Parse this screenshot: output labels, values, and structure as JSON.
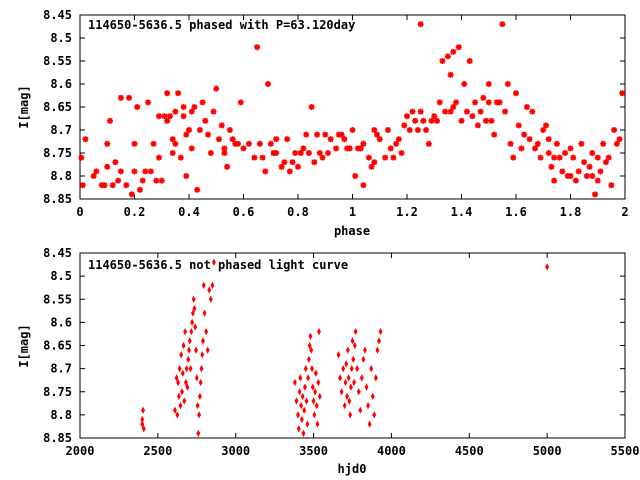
{
  "chart_data": [
    {
      "type": "scatter",
      "title": "114650-5636.5 phased with P=63.120day",
      "xlabel": "phase",
      "ylabel": "I[mag]",
      "xlim": [
        0,
        2
      ],
      "ylim": [
        8.85,
        8.45
      ],
      "y_inverted": true,
      "xticks": [
        0,
        0.2,
        0.4,
        0.6,
        0.8,
        1,
        1.2,
        1.4,
        1.6,
        1.8,
        2
      ],
      "xtick_labels": [
        "0",
        "0.2",
        "0.4",
        "0.6",
        "0.8",
        "1",
        "1.2",
        "1.4",
        "1.6",
        "1.8",
        "2"
      ],
      "yticks": [
        8.45,
        8.5,
        8.55,
        8.6,
        8.65,
        8.7,
        8.75,
        8.8,
        8.85
      ],
      "ytick_labels": [
        "8.45",
        "8.5",
        "8.55",
        "8.6",
        "8.65",
        "8.7",
        "8.75",
        "8.8",
        "8.85"
      ],
      "grid": false,
      "marker_color": "#ff0000",
      "marker": "cross",
      "points": [
        [
          0.005,
          8.76
        ],
        [
          0.01,
          8.82
        ],
        [
          0.02,
          8.72
        ],
        [
          0.05,
          8.8
        ],
        [
          0.06,
          8.79
        ],
        [
          0.08,
          8.82
        ],
        [
          0.09,
          8.82
        ],
        [
          0.1,
          8.78
        ],
        [
          0.1,
          8.73
        ],
        [
          0.11,
          8.68
        ],
        [
          0.12,
          8.82
        ],
        [
          0.13,
          8.77
        ],
        [
          0.14,
          8.81
        ],
        [
          0.15,
          8.79
        ],
        [
          0.15,
          8.63
        ],
        [
          0.17,
          8.82
        ],
        [
          0.18,
          8.63
        ],
        [
          0.19,
          8.84
        ],
        [
          0.2,
          8.79
        ],
        [
          0.2,
          8.73
        ],
        [
          0.21,
          8.65
        ],
        [
          0.22,
          8.83
        ],
        [
          0.23,
          8.81
        ],
        [
          0.24,
          8.79
        ],
        [
          0.25,
          8.64
        ],
        [
          0.26,
          8.79
        ],
        [
          0.27,
          8.73
        ],
        [
          0.28,
          8.81
        ],
        [
          0.29,
          8.76
        ],
        [
          0.29,
          8.67
        ],
        [
          0.3,
          8.81
        ],
        [
          0.31,
          8.67
        ],
        [
          0.32,
          8.68
        ],
        [
          0.32,
          8.62
        ],
        [
          0.33,
          8.67
        ],
        [
          0.34,
          8.75
        ],
        [
          0.34,
          8.72
        ],
        [
          0.35,
          8.73
        ],
        [
          0.35,
          8.66
        ],
        [
          0.36,
          8.62
        ],
        [
          0.37,
          8.76
        ],
        [
          0.38,
          8.65
        ],
        [
          0.38,
          8.67
        ],
        [
          0.39,
          8.8
        ],
        [
          0.39,
          8.71
        ],
        [
          0.4,
          8.7
        ],
        [
          0.41,
          8.74
        ],
        [
          0.41,
          8.66
        ],
        [
          0.42,
          8.65
        ],
        [
          0.43,
          8.83
        ],
        [
          0.44,
          8.7
        ],
        [
          0.45,
          8.64
        ],
        [
          0.46,
          8.68
        ],
        [
          0.47,
          8.71
        ],
        [
          0.48,
          8.75
        ],
        [
          0.49,
          8.66
        ],
        [
          0.5,
          8.61
        ],
        [
          0.51,
          8.72
        ],
        [
          0.52,
          8.69
        ],
        [
          0.53,
          8.75
        ],
        [
          0.53,
          8.74
        ],
        [
          0.54,
          8.78
        ],
        [
          0.55,
          8.7
        ],
        [
          0.56,
          8.72
        ],
        [
          0.57,
          8.73
        ],
        [
          0.58,
          8.73
        ],
        [
          0.59,
          8.64
        ],
        [
          0.6,
          8.74
        ],
        [
          0.62,
          8.73
        ],
        [
          0.64,
          8.76
        ],
        [
          0.65,
          8.52
        ],
        [
          0.66,
          8.73
        ],
        [
          0.67,
          8.76
        ],
        [
          0.68,
          8.79
        ],
        [
          0.69,
          8.6
        ],
        [
          0.7,
          8.73
        ],
        [
          0.71,
          8.75
        ],
        [
          0.72,
          8.75
        ],
        [
          0.72,
          8.72
        ],
        [
          0.74,
          8.78
        ],
        [
          0.75,
          8.77
        ],
        [
          0.76,
          8.72
        ],
        [
          0.77,
          8.79
        ],
        [
          0.78,
          8.77
        ],
        [
          0.79,
          8.75
        ],
        [
          0.8,
          8.78
        ],
        [
          0.81,
          8.75
        ],
        [
          0.82,
          8.74
        ],
        [
          0.83,
          8.71
        ],
        [
          0.84,
          8.75
        ],
        [
          0.85,
          8.65
        ],
        [
          0.86,
          8.77
        ],
        [
          0.87,
          8.71
        ],
        [
          0.88,
          8.75
        ],
        [
          0.89,
          8.76
        ],
        [
          0.9,
          8.71
        ],
        [
          0.91,
          8.75
        ],
        [
          0.92,
          8.72
        ],
        [
          0.94,
          8.74
        ],
        [
          0.95,
          8.71
        ],
        [
          0.96,
          8.71
        ],
        [
          0.97,
          8.72
        ],
        [
          0.98,
          8.74
        ],
        [
          0.99,
          8.74
        ],
        [
          1.0,
          8.7
        ],
        [
          1.01,
          8.8
        ],
        [
          1.02,
          8.74
        ],
        [
          1.03,
          8.74
        ],
        [
          1.04,
          8.73
        ],
        [
          1.04,
          8.82
        ],
        [
          1.06,
          8.76
        ],
        [
          1.07,
          8.78
        ],
        [
          1.08,
          8.77
        ],
        [
          1.08,
          8.7
        ],
        [
          1.09,
          8.71
        ],
        [
          1.1,
          8.72
        ],
        [
          1.12,
          8.76
        ],
        [
          1.13,
          8.7
        ],
        [
          1.14,
          8.74
        ],
        [
          1.15,
          8.76
        ],
        [
          1.16,
          8.73
        ],
        [
          1.17,
          8.72
        ],
        [
          1.18,
          8.75
        ],
        [
          1.19,
          8.69
        ],
        [
          1.2,
          8.67
        ],
        [
          1.21,
          8.7
        ],
        [
          1.22,
          8.66
        ],
        [
          1.23,
          8.68
        ],
        [
          1.24,
          8.7
        ],
        [
          1.25,
          8.66
        ],
        [
          1.25,
          8.47
        ],
        [
          1.26,
          8.68
        ],
        [
          1.27,
          8.7
        ],
        [
          1.28,
          8.73
        ],
        [
          1.29,
          8.68
        ],
        [
          1.3,
          8.67
        ],
        [
          1.31,
          8.68
        ],
        [
          1.32,
          8.64
        ],
        [
          1.33,
          8.55
        ],
        [
          1.34,
          8.66
        ],
        [
          1.35,
          8.54
        ],
        [
          1.36,
          8.66
        ],
        [
          1.36,
          8.58
        ],
        [
          1.37,
          8.65
        ],
        [
          1.37,
          8.53
        ],
        [
          1.38,
          8.64
        ],
        [
          1.39,
          8.52
        ],
        [
          1.4,
          8.68
        ],
        [
          1.41,
          8.6
        ],
        [
          1.42,
          8.66
        ],
        [
          1.43,
          8.55
        ],
        [
          1.44,
          8.67
        ],
        [
          1.45,
          8.64
        ],
        [
          1.46,
          8.69
        ],
        [
          1.47,
          8.66
        ],
        [
          1.48,
          8.63
        ],
        [
          1.49,
          8.68
        ],
        [
          1.5,
          8.64
        ],
        [
          1.5,
          8.6
        ],
        [
          1.51,
          8.68
        ],
        [
          1.52,
          8.71
        ],
        [
          1.53,
          8.64
        ],
        [
          1.54,
          8.64
        ],
        [
          1.55,
          8.47
        ],
        [
          1.56,
          8.66
        ],
        [
          1.57,
          8.6
        ],
        [
          1.58,
          8.73
        ],
        [
          1.59,
          8.76
        ],
        [
          1.6,
          8.62
        ],
        [
          1.61,
          8.69
        ],
        [
          1.62,
          8.74
        ],
        [
          1.63,
          8.71
        ],
        [
          1.64,
          8.65
        ],
        [
          1.65,
          8.72
        ],
        [
          1.66,
          8.66
        ],
        [
          1.67,
          8.74
        ],
        [
          1.68,
          8.73
        ],
        [
          1.69,
          8.76
        ],
        [
          1.7,
          8.7
        ],
        [
          1.71,
          8.69
        ],
        [
          1.72,
          8.72
        ],
        [
          1.72,
          8.75
        ],
        [
          1.73,
          8.78
        ],
        [
          1.74,
          8.81
        ],
        [
          1.74,
          8.76
        ],
        [
          1.75,
          8.73
        ],
        [
          1.76,
          8.76
        ],
        [
          1.77,
          8.79
        ],
        [
          1.78,
          8.75
        ],
        [
          1.79,
          8.8
        ],
        [
          1.8,
          8.74
        ],
        [
          1.8,
          8.8
        ],
        [
          1.81,
          8.76
        ],
        [
          1.82,
          8.81
        ],
        [
          1.83,
          8.79
        ],
        [
          1.84,
          8.73
        ],
        [
          1.85,
          8.77
        ],
        [
          1.86,
          8.8
        ],
        [
          1.87,
          8.78
        ],
        [
          1.88,
          8.75
        ],
        [
          1.88,
          8.8
        ],
        [
          1.89,
          8.84
        ],
        [
          1.9,
          8.81
        ],
        [
          1.9,
          8.76
        ],
        [
          1.91,
          8.79
        ],
        [
          1.92,
          8.73
        ],
        [
          1.93,
          8.77
        ],
        [
          1.94,
          8.76
        ],
        [
          1.95,
          8.82
        ],
        [
          1.96,
          8.7
        ],
        [
          1.97,
          8.73
        ],
        [
          1.98,
          8.72
        ],
        [
          1.99,
          8.62
        ]
      ]
    },
    {
      "type": "scatter",
      "title": "114650-5636.5 not phased light curve",
      "xlabel": "hjd0",
      "ylabel": "I[mag]",
      "xlim": [
        2000,
        5500
      ],
      "ylim": [
        8.85,
        8.45
      ],
      "y_inverted": true,
      "xticks": [
        2000,
        2500,
        3000,
        3500,
        4000,
        4500,
        5000,
        5500
      ],
      "xtick_labels": [
        "2000",
        "2500",
        "3000",
        "3500",
        "4000",
        "4500",
        "5000",
        "5500"
      ],
      "yticks": [
        8.45,
        8.5,
        8.55,
        8.6,
        8.65,
        8.7,
        8.75,
        8.8,
        8.85
      ],
      "ytick_labels": [
        "8.45",
        "8.5",
        "8.55",
        "8.6",
        "8.65",
        "8.7",
        "8.75",
        "8.8",
        "8.85"
      ],
      "grid": false,
      "marker_color": "#ff0000",
      "marker": "diamond",
      "points": [
        [
          2400,
          8.82
        ],
        [
          2400,
          8.81
        ],
        [
          2405,
          8.79
        ],
        [
          2410,
          8.83
        ],
        [
          2610,
          8.79
        ],
        [
          2620,
          8.72
        ],
        [
          2625,
          8.8
        ],
        [
          2630,
          8.73
        ],
        [
          2635,
          8.76
        ],
        [
          2640,
          8.7
        ],
        [
          2645,
          8.78
        ],
        [
          2650,
          8.67
        ],
        [
          2655,
          8.75
        ],
        [
          2660,
          8.71
        ],
        [
          2665,
          8.65
        ],
        [
          2670,
          8.77
        ],
        [
          2675,
          8.62
        ],
        [
          2680,
          8.73
        ],
        [
          2685,
          8.7
        ],
        [
          2690,
          8.74
        ],
        [
          2695,
          8.68
        ],
        [
          2700,
          8.66
        ],
        [
          2705,
          8.64
        ],
        [
          2710,
          8.7
        ],
        [
          2715,
          8.62
        ],
        [
          2720,
          8.6
        ],
        [
          2725,
          8.58
        ],
        [
          2730,
          8.55
        ],
        [
          2735,
          8.57
        ],
        [
          2740,
          8.61
        ],
        [
          2745,
          8.66
        ],
        [
          2750,
          8.72
        ],
        [
          2755,
          8.78
        ],
        [
          2760,
          8.84
        ],
        [
          2765,
          8.8
        ],
        [
          2770,
          8.76
        ],
        [
          2775,
          8.73
        ],
        [
          2780,
          8.7
        ],
        [
          2785,
          8.67
        ],
        [
          2790,
          8.64
        ],
        [
          2795,
          8.52
        ],
        [
          2800,
          8.58
        ],
        [
          2810,
          8.62
        ],
        [
          2820,
          8.66
        ],
        [
          2830,
          8.53
        ],
        [
          2840,
          8.55
        ],
        [
          2850,
          8.52
        ],
        [
          2860,
          8.47
        ],
        [
          3380,
          8.73
        ],
        [
          3390,
          8.77
        ],
        [
          3400,
          8.8
        ],
        [
          3405,
          8.83
        ],
        [
          3410,
          8.75
        ],
        [
          3415,
          8.72
        ],
        [
          3420,
          8.78
        ],
        [
          3425,
          8.81
        ],
        [
          3430,
          8.76
        ],
        [
          3435,
          8.84
        ],
        [
          3440,
          8.79
        ],
        [
          3445,
          8.74
        ],
        [
          3450,
          8.7
        ],
        [
          3455,
          8.77
        ],
        [
          3460,
          8.82
        ],
        [
          3465,
          8.72
        ],
        [
          3470,
          8.68
        ],
        [
          3475,
          8.65
        ],
        [
          3480,
          8.63
        ],
        [
          3485,
          8.66
        ],
        [
          3490,
          8.7
        ],
        [
          3495,
          8.74
        ],
        [
          3500,
          8.77
        ],
        [
          3505,
          8.8
        ],
        [
          3510,
          8.75
        ],
        [
          3515,
          8.71
        ],
        [
          3520,
          8.78
        ],
        [
          3525,
          8.82
        ],
        [
          3530,
          8.73
        ],
        [
          3535,
          8.62
        ],
        [
          3540,
          8.76
        ],
        [
          3660,
          8.67
        ],
        [
          3670,
          8.72
        ],
        [
          3680,
          8.75
        ],
        [
          3690,
          8.7
        ],
        [
          3700,
          8.78
        ],
        [
          3705,
          8.73
        ],
        [
          3710,
          8.69
        ],
        [
          3715,
          8.76
        ],
        [
          3720,
          8.66
        ],
        [
          3725,
          8.72
        ],
        [
          3730,
          8.77
        ],
        [
          3735,
          8.8
        ],
        [
          3740,
          8.74
        ],
        [
          3745,
          8.7
        ],
        [
          3750,
          8.64
        ],
        [
          3755,
          8.68
        ],
        [
          3760,
          8.73
        ],
        [
          3765,
          8.65
        ],
        [
          3770,
          8.62
        ],
        [
          3780,
          8.7
        ],
        [
          3790,
          8.75
        ],
        [
          3800,
          8.79
        ],
        [
          3810,
          8.72
        ],
        [
          3820,
          8.68
        ],
        [
          3830,
          8.66
        ],
        [
          3840,
          8.74
        ],
        [
          3850,
          8.78
        ],
        [
          3860,
          8.82
        ],
        [
          3870,
          8.7
        ],
        [
          3880,
          8.76
        ],
        [
          3890,
          8.8
        ],
        [
          3900,
          8.72
        ],
        [
          3910,
          8.66
        ],
        [
          3920,
          8.64
        ],
        [
          3930,
          8.62
        ],
        [
          5000,
          8.48
        ]
      ]
    }
  ]
}
